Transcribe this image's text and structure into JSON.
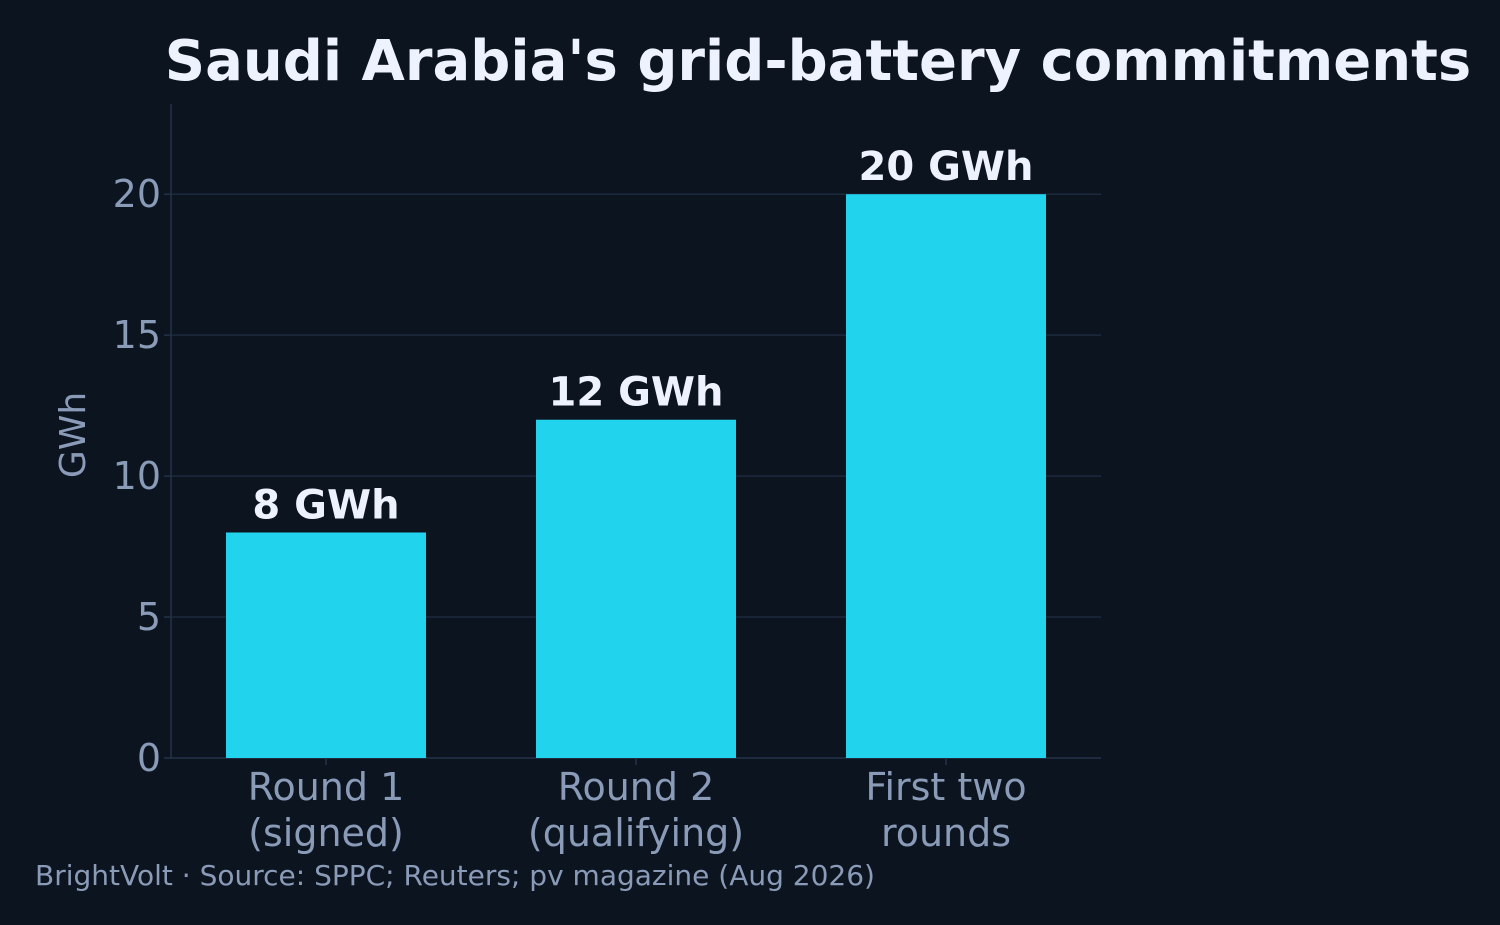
{
  "chart_data": {
    "type": "bar",
    "title": "Saudi Arabia's grid-battery commitments",
    "ylabel": "GWh",
    "categories": [
      [
        "Round 1",
        "(signed)"
      ],
      [
        "Round 2",
        "(qualifying)"
      ],
      [
        "First two",
        "rounds"
      ]
    ],
    "values": [
      8,
      12,
      20
    ],
    "data_labels": [
      "8 GWh",
      "12 GWh",
      "20 GWh"
    ],
    "ylim": [
      0,
      23.2
    ],
    "yticks": [
      0,
      5,
      10,
      15,
      20
    ],
    "grid": true,
    "legend": "none"
  },
  "footer": "BrightVolt  ·  Source: SPPC; Reuters; pv magazine (Aug 2026)",
  "colors": {
    "background": "#0c1420",
    "bar": "#22d3ee",
    "grid": "#1c2a3e",
    "axis": "#243247",
    "title_text": "#eef2ff",
    "muted_text": "#8a9bb8"
  }
}
